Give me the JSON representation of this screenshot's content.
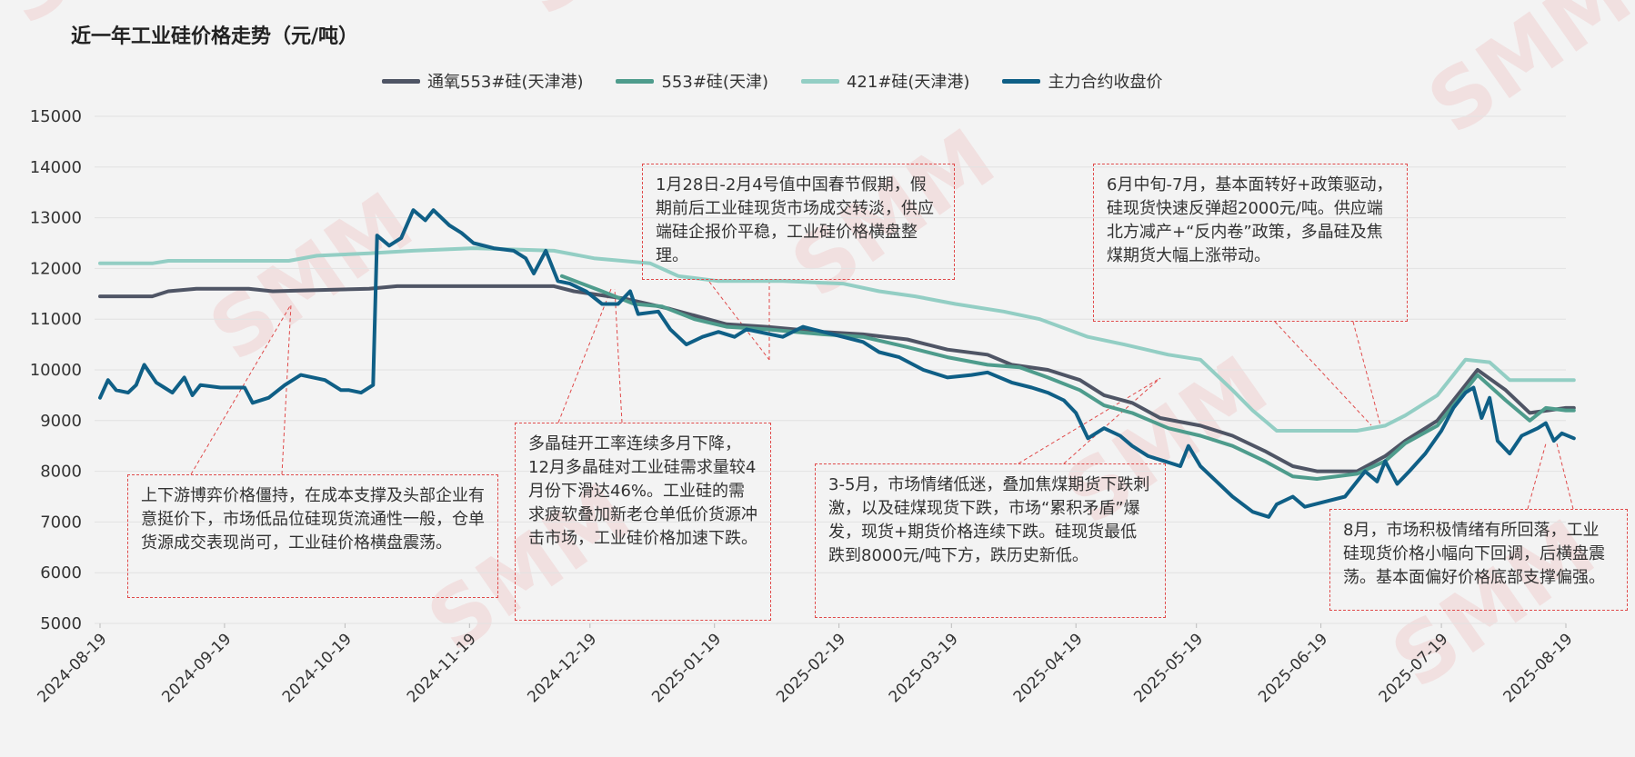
{
  "title": "近一年工业硅价格走势（元/吨）",
  "watermark": "SMM",
  "colors": {
    "s1": "#4f5565",
    "s2": "#4e9c8c",
    "s3": "#93cec4",
    "s4": "#0f5f86",
    "grid": "#e2e2e2",
    "annotation": "#e04a4a"
  },
  "annotations": [
    {
      "id": "a1",
      "text": "上下游博弈价格僵持，在成本支撑及头部企业有意挺价下，市场低品位硅现货流通性一般，仓单货源成交表现尚可，工业硅价格横盘震荡。"
    },
    {
      "id": "a2",
      "text": "多晶硅开工率连续多月下降，12月多晶硅对工业硅需求量较4月份下滑达46%。工业硅的需求疲软叠加新老仓单低价货源冲击市场，工业硅价格加速下跌。"
    },
    {
      "id": "a3",
      "text": "1月28日-2月4号值中国春节假期，假期前后工业硅现货市场成交转淡，供应端硅企报价平稳，工业硅价格横盘整理。"
    },
    {
      "id": "a4",
      "text": "3-5月，市场情绪低迷，叠加焦煤期货下跌刺激，以及硅煤现货下跌，市场“累积矛盾”爆发，现货+期货价格连续下跌。硅现货最低跌到8000元/吨下方，跌历史新低。"
    },
    {
      "id": "a5",
      "text": "6月中旬-7月，基本面转好+政策驱动，硅现货快速反弹超2000元/吨。供应端北方减产+“反内卷”政策，多晶硅及焦煤期货大幅上涨带动。"
    },
    {
      "id": "a6",
      "text": "8月，市场积极情绪有所回落，工业硅现货价格小幅向下回调，后横盘震荡。基本面偏好价格底部支撑偏强。"
    }
  ],
  "chart_data": {
    "type": "line",
    "title": "近一年工业硅价格走势（元/吨）",
    "ylim": [
      5000,
      15000
    ],
    "yticks": [
      5000,
      6000,
      7000,
      8000,
      9000,
      10000,
      11000,
      12000,
      13000,
      14000,
      15000
    ],
    "xticks": [
      "2024-08-19",
      "2024-09-19",
      "2024-10-19",
      "2024-11-19",
      "2024-12-19",
      "2025-01-19",
      "2025-02-19",
      "2025-03-19",
      "2025-04-19",
      "2025-05-19",
      "2025-06-19",
      "2025-07-19",
      "2025-08-19"
    ],
    "grid": "horizontal",
    "legend": "top",
    "series": [
      {
        "name": "通氧553#硅(天津港)",
        "points": [
          [
            "2024-08-19",
            11450
          ],
          [
            "2024-09-01",
            11450
          ],
          [
            "2024-09-05",
            11550
          ],
          [
            "2024-09-12",
            11600
          ],
          [
            "2024-09-25",
            11600
          ],
          [
            "2024-10-01",
            11550
          ],
          [
            "2024-10-25",
            11600
          ],
          [
            "2024-11-01",
            11650
          ],
          [
            "2024-12-10",
            11650
          ],
          [
            "2024-12-15",
            11550
          ],
          [
            "2024-12-28",
            11400
          ],
          [
            "2025-01-08",
            11200
          ],
          [
            "2025-01-22",
            10900
          ],
          [
            "2025-02-01",
            10850
          ],
          [
            "2025-02-15",
            10750
          ],
          [
            "2025-02-25",
            10700
          ],
          [
            "2025-03-08",
            10600
          ],
          [
            "2025-03-18",
            10400
          ],
          [
            "2025-03-28",
            10300
          ],
          [
            "2025-04-03",
            10100
          ],
          [
            "2025-04-12",
            10000
          ],
          [
            "2025-04-20",
            9800
          ],
          [
            "2025-04-26",
            9500
          ],
          [
            "2025-05-03",
            9350
          ],
          [
            "2025-05-10",
            9050
          ],
          [
            "2025-05-20",
            8900
          ],
          [
            "2025-05-28",
            8700
          ],
          [
            "2025-06-05",
            8400
          ],
          [
            "2025-06-12",
            8100
          ],
          [
            "2025-06-18",
            8000
          ],
          [
            "2025-06-28",
            8000
          ],
          [
            "2025-07-05",
            8300
          ],
          [
            "2025-07-10",
            8600
          ],
          [
            "2025-07-18",
            9000
          ],
          [
            "2025-07-25",
            9700
          ],
          [
            "2025-07-28",
            10000
          ],
          [
            "2025-08-04",
            9600
          ],
          [
            "2025-08-10",
            9150
          ],
          [
            "2025-08-19",
            9250
          ],
          [
            "2025-08-21",
            9250
          ]
        ]
      },
      {
        "name": "553#硅(天津)",
        "points": [
          [
            "2024-12-12",
            11850
          ],
          [
            "2024-12-22",
            11550
          ],
          [
            "2024-12-30",
            11300
          ],
          [
            "2025-01-06",
            11250
          ],
          [
            "2025-01-14",
            11000
          ],
          [
            "2025-01-22",
            10850
          ],
          [
            "2025-02-01",
            10800
          ],
          [
            "2025-02-15",
            10700
          ],
          [
            "2025-02-25",
            10650
          ],
          [
            "2025-03-08",
            10450
          ],
          [
            "2025-03-18",
            10250
          ],
          [
            "2025-03-28",
            10100
          ],
          [
            "2025-04-05",
            10050
          ],
          [
            "2025-04-12",
            9850
          ],
          [
            "2025-04-20",
            9600
          ],
          [
            "2025-04-26",
            9300
          ],
          [
            "2025-05-03",
            9150
          ],
          [
            "2025-05-12",
            8850
          ],
          [
            "2025-05-20",
            8700
          ],
          [
            "2025-05-28",
            8500
          ],
          [
            "2025-06-05",
            8200
          ],
          [
            "2025-06-12",
            7900
          ],
          [
            "2025-06-18",
            7850
          ],
          [
            "2025-06-28",
            7950
          ],
          [
            "2025-07-05",
            8200
          ],
          [
            "2025-07-10",
            8550
          ],
          [
            "2025-07-18",
            8900
          ],
          [
            "2025-07-25",
            9600
          ],
          [
            "2025-07-28",
            9900
          ],
          [
            "2025-08-04",
            9400
          ],
          [
            "2025-08-10",
            9000
          ],
          [
            "2025-08-14",
            9250
          ],
          [
            "2025-08-19",
            9200
          ],
          [
            "2025-08-21",
            9200
          ]
        ]
      },
      {
        "name": "421#硅(天津港)",
        "points": [
          [
            "2024-08-19",
            12100
          ],
          [
            "2024-09-01",
            12100
          ],
          [
            "2024-09-05",
            12150
          ],
          [
            "2024-09-25",
            12150
          ],
          [
            "2024-10-05",
            12150
          ],
          [
            "2024-10-12",
            12250
          ],
          [
            "2024-10-25",
            12300
          ],
          [
            "2024-11-05",
            12350
          ],
          [
            "2024-11-20",
            12400
          ],
          [
            "2024-12-10",
            12350
          ],
          [
            "2024-12-20",
            12200
          ],
          [
            "2025-01-03",
            12100
          ],
          [
            "2025-01-10",
            11850
          ],
          [
            "2025-01-20",
            11750
          ],
          [
            "2025-02-05",
            11750
          ],
          [
            "2025-02-20",
            11700
          ],
          [
            "2025-03-01",
            11550
          ],
          [
            "2025-03-10",
            11450
          ],
          [
            "2025-03-20",
            11300
          ],
          [
            "2025-04-01",
            11150
          ],
          [
            "2025-04-10",
            11000
          ],
          [
            "2025-04-22",
            10650
          ],
          [
            "2025-05-01",
            10500
          ],
          [
            "2025-05-12",
            10300
          ],
          [
            "2025-05-20",
            10200
          ],
          [
            "2025-05-28",
            9600
          ],
          [
            "2025-06-02",
            9200
          ],
          [
            "2025-06-08",
            8800
          ],
          [
            "2025-06-28",
            8800
          ],
          [
            "2025-07-05",
            8900
          ],
          [
            "2025-07-10",
            9100
          ],
          [
            "2025-07-18",
            9500
          ],
          [
            "2025-07-25",
            10200
          ],
          [
            "2025-07-31",
            10150
          ],
          [
            "2025-08-05",
            9800
          ],
          [
            "2025-08-10",
            9800
          ],
          [
            "2025-08-21",
            9800
          ]
        ]
      },
      {
        "name": "主力合约收盘价",
        "points": [
          [
            "2024-08-19",
            9450
          ],
          [
            "2024-08-21",
            9800
          ],
          [
            "2024-08-23",
            9600
          ],
          [
            "2024-08-26",
            9550
          ],
          [
            "2024-08-28",
            9700
          ],
          [
            "2024-08-30",
            10100
          ],
          [
            "2024-09-02",
            9750
          ],
          [
            "2024-09-04",
            9650
          ],
          [
            "2024-09-06",
            9550
          ],
          [
            "2024-09-09",
            9850
          ],
          [
            "2024-09-11",
            9500
          ],
          [
            "2024-09-13",
            9700
          ],
          [
            "2024-09-18",
            9650
          ],
          [
            "2024-09-24",
            9650
          ],
          [
            "2024-09-26",
            9350
          ],
          [
            "2024-09-30",
            9450
          ],
          [
            "2024-10-04",
            9700
          ],
          [
            "2024-10-08",
            9900
          ],
          [
            "2024-10-14",
            9800
          ],
          [
            "2024-10-18",
            9600
          ],
          [
            "2024-10-20",
            9600
          ],
          [
            "2024-10-23",
            9550
          ],
          [
            "2024-10-26",
            9700
          ],
          [
            "2024-10-27",
            12650
          ],
          [
            "2024-10-30",
            12450
          ],
          [
            "2024-11-02",
            12600
          ],
          [
            "2024-11-05",
            13150
          ],
          [
            "2024-11-08",
            12950
          ],
          [
            "2024-11-10",
            13150
          ],
          [
            "2024-11-14",
            12850
          ],
          [
            "2024-11-17",
            12700
          ],
          [
            "2024-11-20",
            12500
          ],
          [
            "2024-11-25",
            12400
          ],
          [
            "2024-11-30",
            12350
          ],
          [
            "2024-12-03",
            12200
          ],
          [
            "2024-12-05",
            11900
          ],
          [
            "2024-12-08",
            12350
          ],
          [
            "2024-12-11",
            11750
          ],
          [
            "2024-12-14",
            11700
          ],
          [
            "2024-12-18",
            11550
          ],
          [
            "2024-12-22",
            11300
          ],
          [
            "2024-12-26",
            11300
          ],
          [
            "2024-12-29",
            11550
          ],
          [
            "2024-12-31",
            11100
          ],
          [
            "2025-01-05",
            11150
          ],
          [
            "2025-01-08",
            10800
          ],
          [
            "2025-01-12",
            10500
          ],
          [
            "2025-01-16",
            10650
          ],
          [
            "2025-01-20",
            10750
          ],
          [
            "2025-01-24",
            10650
          ],
          [
            "2025-01-27",
            10800
          ],
          [
            "2025-02-05",
            10650
          ],
          [
            "2025-02-10",
            10850
          ],
          [
            "2025-02-15",
            10750
          ],
          [
            "2025-02-20",
            10650
          ],
          [
            "2025-02-25",
            10550
          ],
          [
            "2025-03-01",
            10350
          ],
          [
            "2025-03-06",
            10250
          ],
          [
            "2025-03-12",
            10000
          ],
          [
            "2025-03-18",
            9850
          ],
          [
            "2025-03-24",
            9900
          ],
          [
            "2025-03-28",
            9950
          ],
          [
            "2025-04-03",
            9750
          ],
          [
            "2025-04-08",
            9650
          ],
          [
            "2025-04-12",
            9550
          ],
          [
            "2025-04-16",
            9400
          ],
          [
            "2025-04-19",
            9150
          ],
          [
            "2025-04-22",
            8650
          ],
          [
            "2025-04-26",
            8850
          ],
          [
            "2025-04-30",
            8700
          ],
          [
            "2025-05-03",
            8500
          ],
          [
            "2025-05-07",
            8300
          ],
          [
            "2025-05-11",
            8200
          ],
          [
            "2025-05-15",
            8100
          ],
          [
            "2025-05-17",
            8500
          ],
          [
            "2025-05-20",
            8100
          ],
          [
            "2025-05-24",
            7800
          ],
          [
            "2025-05-28",
            7500
          ],
          [
            "2025-06-02",
            7200
          ],
          [
            "2025-06-06",
            7100
          ],
          [
            "2025-06-08",
            7350
          ],
          [
            "2025-06-12",
            7500
          ],
          [
            "2025-06-15",
            7300
          ],
          [
            "2025-06-20",
            7400
          ],
          [
            "2025-06-25",
            7500
          ],
          [
            "2025-06-30",
            8000
          ],
          [
            "2025-07-03",
            7800
          ],
          [
            "2025-07-05",
            8200
          ],
          [
            "2025-07-08",
            7750
          ],
          [
            "2025-07-11",
            8000
          ],
          [
            "2025-07-15",
            8350
          ],
          [
            "2025-07-19",
            8800
          ],
          [
            "2025-07-22",
            9250
          ],
          [
            "2025-07-25",
            9550
          ],
          [
            "2025-07-27",
            9650
          ],
          [
            "2025-07-29",
            9050
          ],
          [
            "2025-07-31",
            9450
          ],
          [
            "2025-08-02",
            8600
          ],
          [
            "2025-08-05",
            8350
          ],
          [
            "2025-08-08",
            8700
          ],
          [
            "2025-08-12",
            8850
          ],
          [
            "2025-08-14",
            8950
          ],
          [
            "2025-08-16",
            8600
          ],
          [
            "2025-08-18",
            8750
          ],
          [
            "2025-08-21",
            8650
          ]
        ]
      }
    ]
  }
}
